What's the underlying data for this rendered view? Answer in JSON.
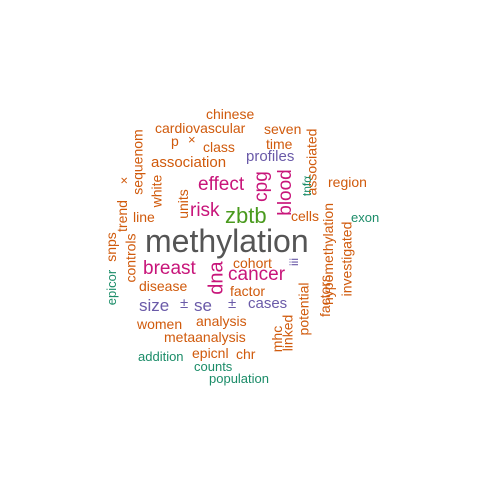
{
  "colors": {
    "gray": "#555555",
    "green": "#4a9a1e",
    "magenta": "#c8157a",
    "orange": "#d05a0c",
    "purple": "#6a5aa8",
    "teal": "#1b8c68"
  },
  "words": [
    {
      "text": "methylation",
      "color": "gray"
    },
    {
      "text": "zbtb",
      "color": "green"
    },
    {
      "text": "cancer",
      "color": "magenta"
    },
    {
      "text": "dna",
      "color": "magenta"
    },
    {
      "text": "breast",
      "color": "magenta"
    },
    {
      "text": "risk",
      "color": "magenta"
    },
    {
      "text": "effect",
      "color": "magenta"
    },
    {
      "text": "blood",
      "color": "magenta"
    },
    {
      "text": "cpg",
      "color": "magenta"
    },
    {
      "text": "size",
      "color": "purple"
    },
    {
      "text": "±",
      "color": "purple"
    },
    {
      "text": "se",
      "color": "purple"
    },
    {
      "text": "±",
      "color": "purple"
    },
    {
      "text": "cases",
      "color": "purple"
    },
    {
      "text": "profiles",
      "color": "purple"
    },
    {
      "text": "iii",
      "color": "purple"
    },
    {
      "text": "chinese",
      "color": "orange"
    },
    {
      "text": "cardiovascular",
      "color": "orange"
    },
    {
      "text": "seven",
      "color": "orange"
    },
    {
      "text": "p",
      "color": "orange"
    },
    {
      "text": "×",
      "color": "orange"
    },
    {
      "text": "class",
      "color": "orange"
    },
    {
      "text": "time",
      "color": "orange"
    },
    {
      "text": "association",
      "color": "orange"
    },
    {
      "text": "associated",
      "color": "orange"
    },
    {
      "text": "sequenom",
      "color": "orange"
    },
    {
      "text": "white",
      "color": "orange"
    },
    {
      "text": "×",
      "color": "orange"
    },
    {
      "text": "trend",
      "color": "orange"
    },
    {
      "text": "line",
      "color": "orange"
    },
    {
      "text": "units",
      "color": "orange"
    },
    {
      "text": "cells",
      "color": "orange"
    },
    {
      "text": "region",
      "color": "orange"
    },
    {
      "text": "controls",
      "color": "orange"
    },
    {
      "text": "snps",
      "color": "orange"
    },
    {
      "text": "cohort",
      "color": "orange"
    },
    {
      "text": "disease",
      "color": "orange"
    },
    {
      "text": "factor",
      "color": "orange"
    },
    {
      "text": "factors",
      "color": "orange"
    },
    {
      "text": "hypomethylation",
      "color": "orange"
    },
    {
      "text": "investigated",
      "color": "orange"
    },
    {
      "text": "potential",
      "color": "orange"
    },
    {
      "text": "women",
      "color": "orange"
    },
    {
      "text": "analysis",
      "color": "orange"
    },
    {
      "text": "metaanalysis",
      "color": "orange"
    },
    {
      "text": "linked",
      "color": "orange"
    },
    {
      "text": "mhc",
      "color": "orange"
    },
    {
      "text": "epicnl",
      "color": "orange"
    },
    {
      "text": "chr",
      "color": "orange"
    },
    {
      "text": "tnfα",
      "color": "teal"
    },
    {
      "text": "exon",
      "color": "teal"
    },
    {
      "text": "epicor",
      "color": "teal"
    },
    {
      "text": "addition",
      "color": "teal"
    },
    {
      "text": "counts",
      "color": "teal"
    },
    {
      "text": "population",
      "color": "teal"
    }
  ]
}
